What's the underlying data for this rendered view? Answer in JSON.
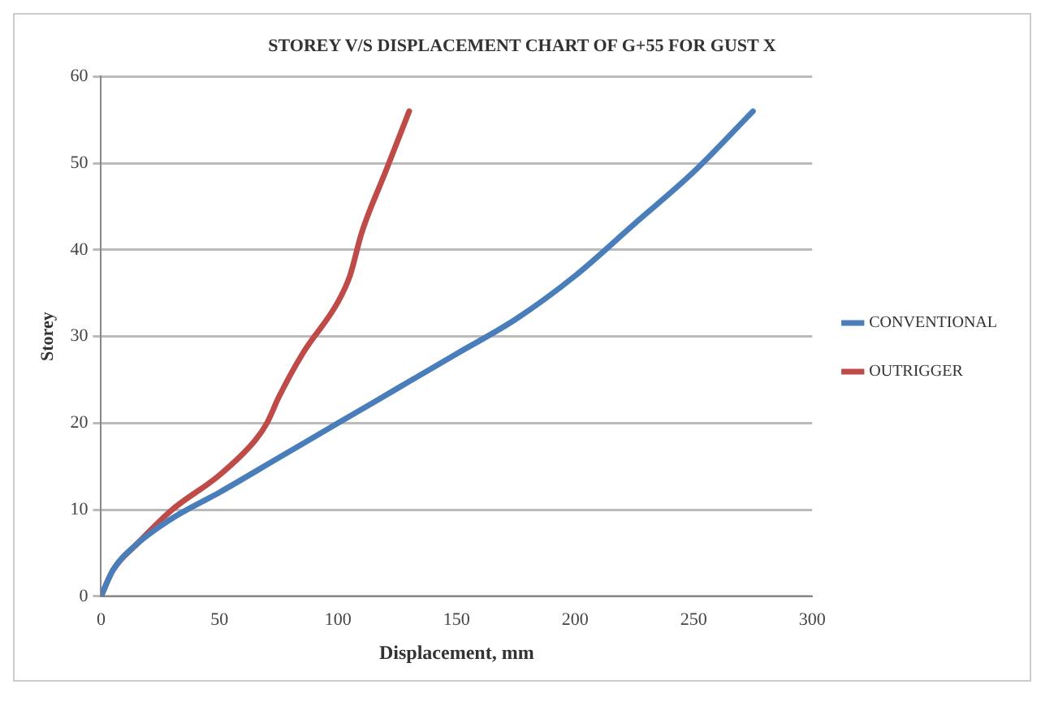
{
  "chart_data": {
    "type": "line",
    "title": "STOREY V/S DISPLACEMENT CHART OF G+55 FOR GUST X",
    "xlabel": "Displacement, mm",
    "ylabel": "Storey",
    "xlim": [
      0,
      300
    ],
    "xticks": [
      0,
      50,
      100,
      150,
      200,
      250,
      300
    ],
    "ylim": [
      0,
      60
    ],
    "yticks": [
      0,
      10,
      20,
      30,
      40,
      50,
      60
    ],
    "grid": "y",
    "legend": "right",
    "marker": "none",
    "line_style": "solid",
    "series": [
      {
        "name": "CONVENTIONAL",
        "color": "#4a7ebb",
        "x": [
          0,
          5,
          15,
          30,
          50,
          75,
          100,
          125,
          150,
          175,
          200,
          225,
          250,
          275
        ],
        "values": [
          0,
          3,
          6,
          9,
          12,
          16,
          20,
          24,
          28,
          32,
          37,
          43,
          49,
          56
        ]
      },
      {
        "name": "OUTRIGGER",
        "color": "#be4b48",
        "x": [
          0,
          5,
          15,
          30,
          50,
          65,
          70,
          75,
          85,
          100,
          105,
          110,
          120,
          130
        ],
        "values": [
          0,
          3,
          6,
          10,
          14,
          18,
          20,
          23,
          28,
          34,
          37,
          42,
          49,
          56
        ]
      }
    ]
  }
}
